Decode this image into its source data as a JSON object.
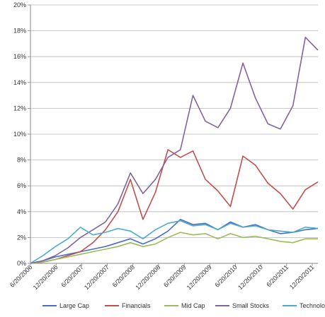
{
  "chart_data": {
    "type": "line",
    "title": "",
    "xlabel": "",
    "ylabel": "",
    "x_ticks": [
      "6/20/2006",
      "12/20/2006",
      "6/20/2007",
      "12/20/2007",
      "6/20/2008",
      "12/20/2008",
      "6/20/2009",
      "12/20/2009",
      "6/20/2010",
      "12/20/2010",
      "6/20/2011",
      "12/20/2011"
    ],
    "y_ticks": [
      "0%",
      "2%",
      "4%",
      "6%",
      "8%",
      "10%",
      "12%",
      "14%",
      "16%",
      "18%",
      "20%"
    ],
    "ylim": [
      0,
      20
    ],
    "y_unit": "%",
    "grid": {
      "horizontal": true,
      "vertical": false
    },
    "legend": {
      "placement": "bottom"
    },
    "x": [
      "6/20/2006",
      "9/20/2006",
      "12/20/2006",
      "3/20/2007",
      "6/20/2007",
      "9/20/2007",
      "12/20/2007",
      "3/20/2008",
      "6/20/2008",
      "9/20/2008",
      "12/20/2008",
      "3/20/2009",
      "6/20/2009",
      "9/20/2009",
      "12/20/2009",
      "3/20/2010",
      "6/20/2010",
      "9/20/2010",
      "12/20/2010",
      "3/20/2011",
      "6/20/2011",
      "9/20/2011",
      "12/20/2011",
      "1/20/2012"
    ],
    "series": [
      {
        "name": "Large Cap",
        "color": "#4a6fbd",
        "values": [
          0.0,
          0.2,
          0.5,
          0.7,
          0.9,
          1.1,
          1.3,
          1.6,
          1.9,
          1.5,
          1.9,
          2.5,
          3.4,
          3.0,
          3.1,
          2.6,
          3.2,
          2.8,
          3.0,
          2.6,
          2.3,
          2.4,
          2.6,
          2.7
        ]
      },
      {
        "name": "Financials",
        "color": "#c0504d",
        "values": [
          0.0,
          0.1,
          0.3,
          0.6,
          0.9,
          1.6,
          2.6,
          4.0,
          6.5,
          3.4,
          5.5,
          8.8,
          8.2,
          8.7,
          6.5,
          5.6,
          4.4,
          8.3,
          7.6,
          6.2,
          5.4,
          4.2,
          5.7,
          6.3
        ]
      },
      {
        "name": "Mid Cap",
        "color": "#9bbb59",
        "values": [
          0.0,
          0.1,
          0.3,
          0.5,
          0.7,
          0.9,
          1.1,
          1.3,
          1.6,
          1.3,
          1.5,
          2.0,
          2.4,
          2.2,
          2.3,
          1.9,
          2.3,
          2.0,
          2.1,
          1.9,
          1.7,
          1.6,
          1.9,
          1.9
        ]
      },
      {
        "name": "Small Stocks",
        "color": "#8064a2",
        "values": [
          0.0,
          0.2,
          0.6,
          1.2,
          2.0,
          2.6,
          3.2,
          4.6,
          7.0,
          5.4,
          6.5,
          8.2,
          8.8,
          13.0,
          11.0,
          10.5,
          12.0,
          15.5,
          12.8,
          10.8,
          10.4,
          12.2,
          17.5,
          16.5
        ]
      },
      {
        "name": "Technology",
        "color": "#4bacc6",
        "values": [
          0.0,
          0.6,
          1.3,
          1.9,
          2.8,
          2.2,
          2.4,
          2.7,
          2.5,
          1.9,
          2.6,
          3.1,
          3.3,
          2.9,
          3.0,
          2.6,
          3.1,
          2.8,
          2.9,
          2.6,
          2.5,
          2.4,
          2.8,
          2.7
        ]
      }
    ]
  }
}
